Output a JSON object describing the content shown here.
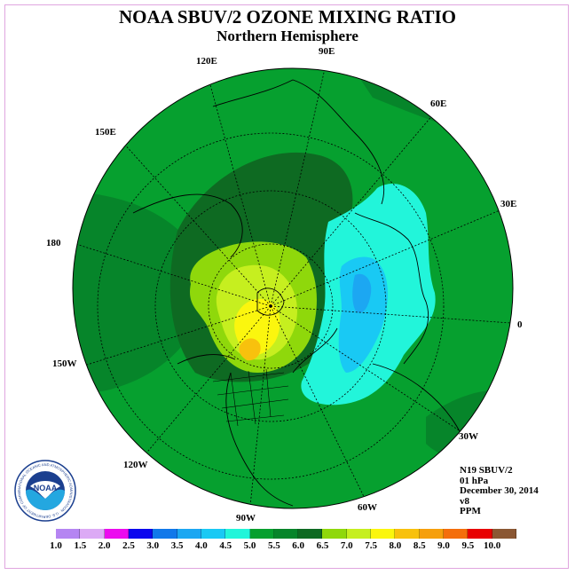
{
  "title": "NOAA SBUV/2 OZONE MIXING RATIO",
  "subtitle": "Northern Hemisphere",
  "longitude_labels": [
    "90E",
    "60E",
    "30E",
    "0",
    "30W",
    "60W",
    "90W",
    "120W",
    "150W",
    "180",
    "150E",
    "120E"
  ],
  "info": {
    "satellite": "N19 SBUV/2",
    "level": "01 hPa",
    "date": "December 30, 2014",
    "version": "v8",
    "units": "PPM"
  },
  "logo": {
    "text": "NOAA",
    "ring_text": "NATIONAL OCEANIC AND ATMOSPHERIC ADMINISTRATION · U.S. DEPARTMENT OF COMMERCE"
  },
  "colorbar": {
    "ticks": [
      "1.0",
      "1.5",
      "2.0",
      "2.5",
      "3.0",
      "3.5",
      "4.0",
      "4.5",
      "5.0",
      "5.5",
      "6.0",
      "6.5",
      "7.0",
      "7.5",
      "8.0",
      "8.5",
      "9.0",
      "9.5",
      "10.0"
    ],
    "colors": [
      "#b585f2",
      "#dcaaf5",
      "#ec0bef",
      "#0c06ee",
      "#1178ea",
      "#1ca7f2",
      "#19c9f4",
      "#22f5da",
      "#06a02f",
      "#06852a",
      "#0e6a22",
      "#8fd80b",
      "#c6ef1f",
      "#fbf60e",
      "#f8c10d",
      "#f69f0c",
      "#f46e0b",
      "#e80101",
      "#8b5733"
    ]
  }
}
